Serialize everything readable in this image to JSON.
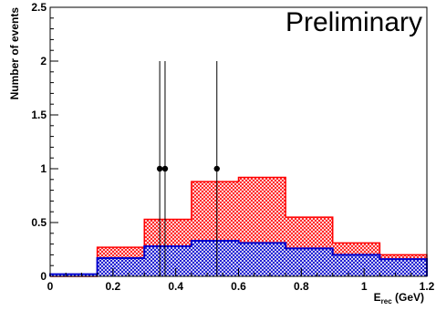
{
  "chart_data": {
    "type": "bar",
    "annotation": "Preliminary",
    "xlabel": "E",
    "xlabel_sub": "rec",
    "xlabel_unit": " (GeV)",
    "ylabel": "Number of events",
    "xlim": [
      0,
      1.2
    ],
    "ylim": [
      0,
      2.5
    ],
    "x_tick_labels": [
      "0",
      "0.2",
      "0.4",
      "0.6",
      "0.8",
      "1",
      "1.2"
    ],
    "y_tick_labels": [
      "0",
      "0.5",
      "1",
      "1.5",
      "2",
      "2.5"
    ],
    "bin_edges": [
      0,
      0.15,
      0.3,
      0.45,
      0.6,
      0.75,
      0.9,
      1.05,
      1.2
    ],
    "series": [
      {
        "values": [
          0.0,
          0.27,
          0.53,
          0.88,
          0.92,
          0.55,
          0.31,
          0.2
        ],
        "color": "#ff0000",
        "fill": "crosshatch"
      },
      {
        "values": [
          0.02,
          0.17,
          0.28,
          0.33,
          0.31,
          0.26,
          0.2,
          0.16
        ],
        "color": "#0000cc",
        "fill": "crosshatch"
      }
    ],
    "points": [
      {
        "x": 0.349,
        "y": 1,
        "yerr_low": 1,
        "yerr_high": 1
      },
      {
        "x": 0.366,
        "y": 1,
        "yerr_low": 1,
        "yerr_high": 1
      },
      {
        "x": 0.531,
        "y": 1,
        "yerr_low": 1,
        "yerr_high": 1
      }
    ]
  }
}
